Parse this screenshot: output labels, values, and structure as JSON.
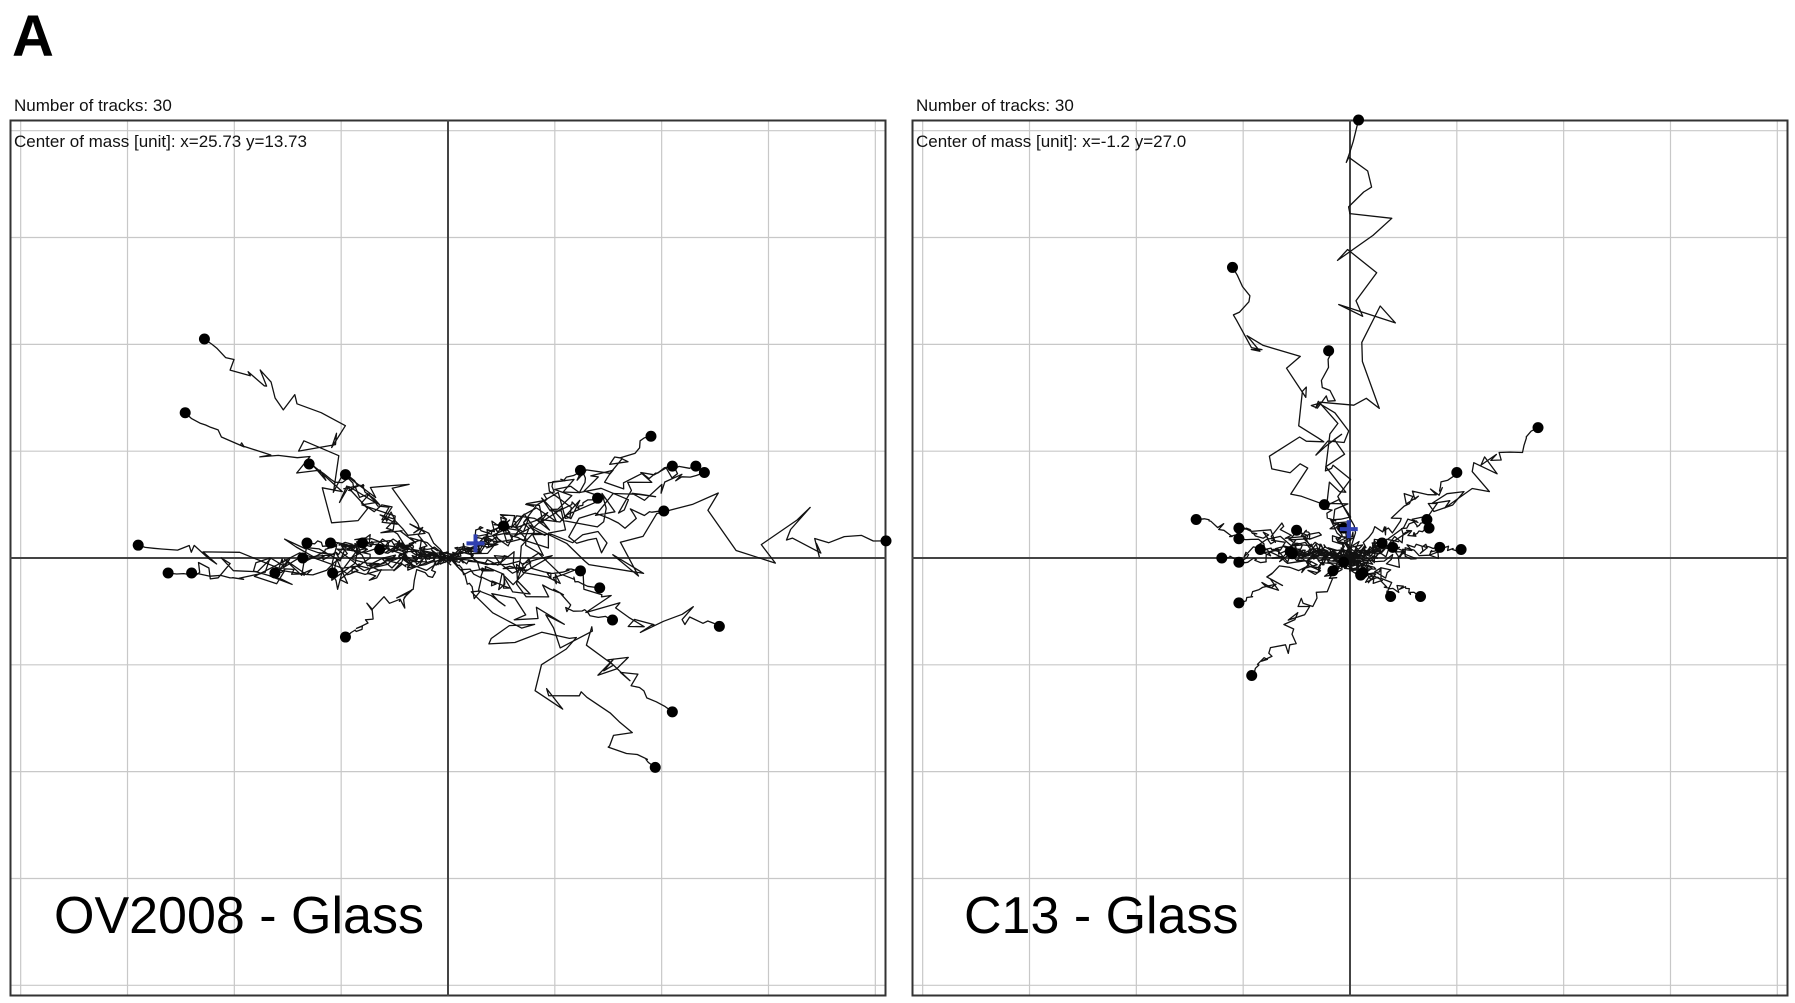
{
  "figure": {
    "panel_letter": "A"
  },
  "chart_data": [
    {
      "type": "scatter",
      "description_text": {
        "tracks_text": "Number of tracks: 30",
        "center_text": "Center of mass [unit]: x=25.73 y=13.73"
      },
      "caption": "OV2008 - Glass",
      "n_tracks": 30,
      "center_of_mass": {
        "x": 25.73,
        "y": 13.73
      },
      "xlim": [
        -410,
        410
      ],
      "ylim": [
        -410,
        410
      ],
      "grid": true,
      "axes_lines": true,
      "end_points": [
        [
          -228,
          205
        ],
        [
          -246,
          136
        ],
        [
          -130,
          88
        ],
        [
          -96,
          78
        ],
        [
          -290,
          12
        ],
        [
          -240,
          -14
        ],
        [
          -132,
          14
        ],
        [
          -110,
          14
        ],
        [
          -80,
          14
        ],
        [
          -64,
          8
        ],
        [
          -136,
          0
        ],
        [
          -108,
          -14
        ],
        [
          -96,
          -74
        ],
        [
          124,
          82
        ],
        [
          140,
          56
        ],
        [
          190,
          114
        ],
        [
          210,
          86
        ],
        [
          240,
          80
        ],
        [
          202,
          44
        ],
        [
          410,
          16
        ],
        [
          124,
          -12
        ],
        [
          142,
          -28
        ],
        [
          154,
          -58
        ],
        [
          254,
          -64
        ],
        [
          210,
          -144
        ],
        [
          194,
          -196
        ],
        [
          232,
          86
        ],
        [
          52,
          30
        ],
        [
          -262,
          -14
        ],
        [
          -162,
          -14
        ]
      ],
      "center_marker_color": "#3040b0"
    },
    {
      "type": "scatter",
      "description_text": {
        "tracks_text": "Number of tracks: 30",
        "center_text": "Center of mass [unit]: x=-1.2 y=27.0"
      },
      "caption": "C13 - Glass",
      "n_tracks": 30,
      "center_of_mass": {
        "x": -1.2,
        "y": 27.0
      },
      "xlim": [
        -410,
        410
      ],
      "ylim": [
        -410,
        410
      ],
      "grid": true,
      "axes_lines": true,
      "end_points": [
        [
          8,
          410
        ],
        [
          -110,
          272
        ],
        [
          -20,
          194
        ],
        [
          176,
          122
        ],
        [
          100,
          80
        ],
        [
          -144,
          36
        ],
        [
          -104,
          28
        ],
        [
          -120,
          0
        ],
        [
          -104,
          -4
        ],
        [
          -54,
          4
        ],
        [
          -24,
          50
        ],
        [
          -6,
          28
        ],
        [
          30,
          14
        ],
        [
          74,
          28
        ],
        [
          72,
          36
        ],
        [
          38,
          -36
        ],
        [
          66,
          -36
        ],
        [
          -104,
          -42
        ],
        [
          -92,
          -110
        ],
        [
          -104,
          18
        ],
        [
          -84,
          8
        ],
        [
          -56,
          6
        ],
        [
          -16,
          -12
        ],
        [
          12,
          -14
        ],
        [
          40,
          10
        ],
        [
          84,
          10
        ],
        [
          104,
          8
        ],
        [
          -50,
          26
        ],
        [
          10,
          -16
        ],
        [
          -6,
          -4
        ]
      ],
      "center_marker_color": "#3040b0"
    }
  ],
  "colors": {
    "track": "#111111",
    "grid": "#c8c8c8",
    "axis": "#444444",
    "frame": "#333333",
    "endpoint": "#000000"
  }
}
